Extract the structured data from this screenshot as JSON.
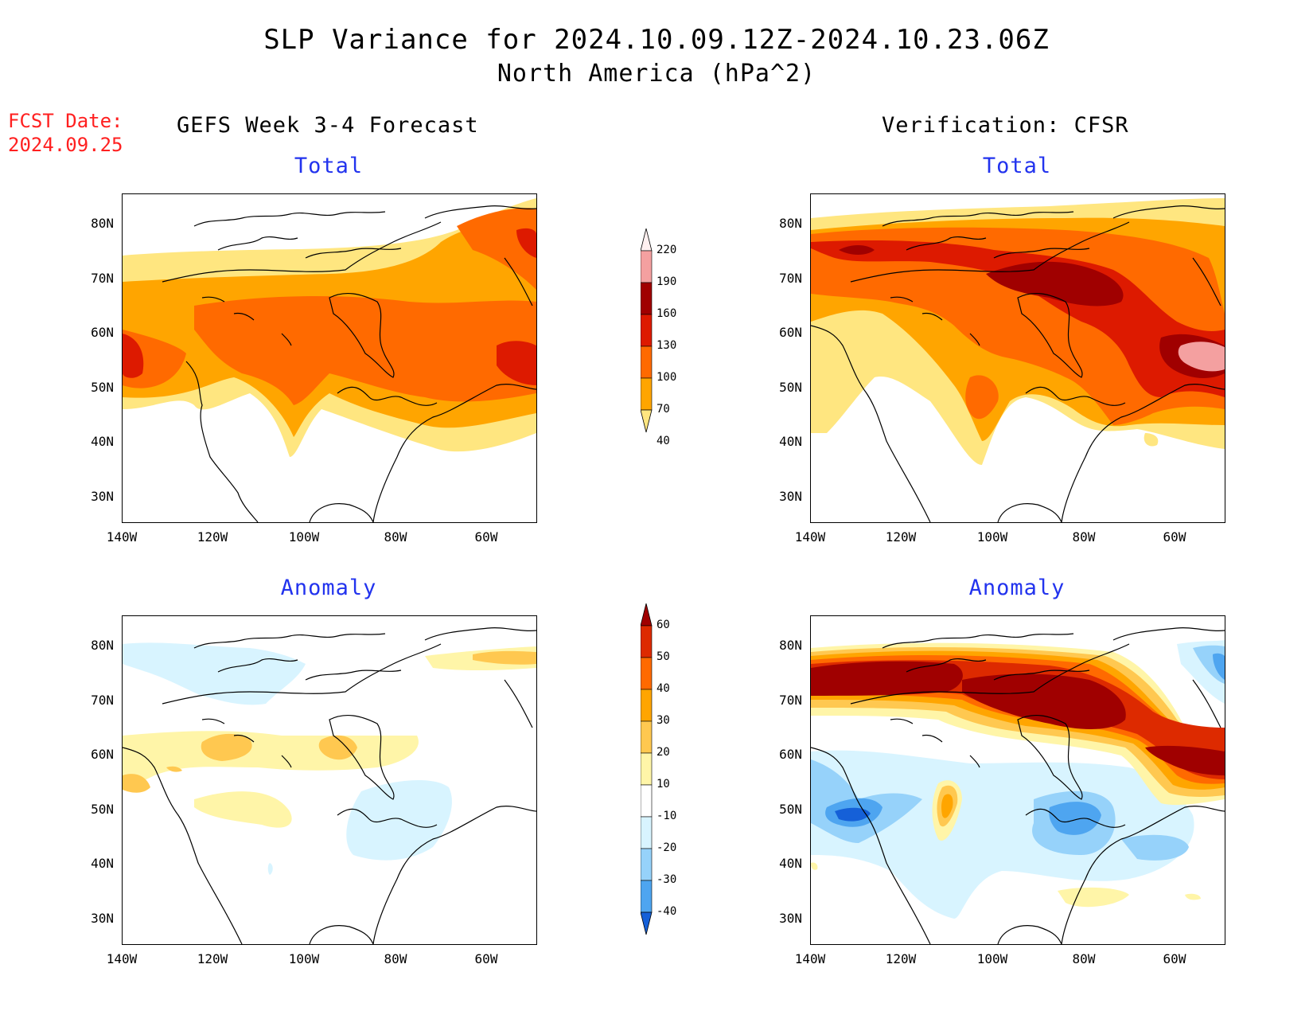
{
  "header": {
    "title_line1": "SLP Variance for 2024.10.09.12Z-2024.10.23.06Z",
    "title_line2": "North America (hPa^2)",
    "fcst_label": "FCST Date:",
    "fcst_date": "2024.09.25"
  },
  "columns": {
    "left": "GEFS Week 3-4 Forecast",
    "right": "Verification: CFSR"
  },
  "panels": {
    "top_left": "Total",
    "top_right": "Total",
    "bottom_left": "Anomaly",
    "bottom_right": "Anomaly"
  },
  "axes": {
    "lat_labels": [
      "80N",
      "70N",
      "60N",
      "50N",
      "40N",
      "30N"
    ],
    "lon_labels": [
      "140W",
      "120W",
      "100W",
      "80W",
      "60W"
    ]
  },
  "colorbars": {
    "total": {
      "levels": [
        "220",
        "190",
        "160",
        "130",
        "100",
        "70",
        "40"
      ],
      "colors": [
        "#fff0f0",
        "#f4a0a0",
        "#a00000",
        "#dd1a00",
        "#ff6a00",
        "#ffa500",
        "#ffe680"
      ]
    },
    "anomaly": {
      "levels": [
        "60",
        "50",
        "40",
        "30",
        "20",
        "10",
        "-10",
        "-20",
        "-30",
        "-40"
      ],
      "colors": [
        "#a00000",
        "#dd2a00",
        "#ff6a00",
        "#ffa500",
        "#ffc850",
        "#fff5a8",
        "#ffffff",
        "#d8f4ff",
        "#96d2fa",
        "#4ea5f0",
        "#1560d8"
      ]
    }
  }
}
